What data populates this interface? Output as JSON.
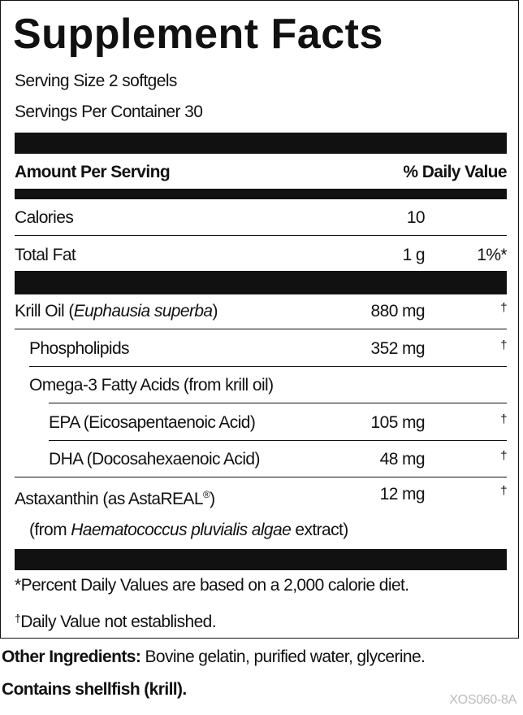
{
  "title": "Supplement Facts",
  "serving_size": "Serving Size 2 softgels",
  "servings_per_container": "Servings Per Container 30",
  "header": {
    "amount": "Amount Per Serving",
    "daily_value": "% Daily Value"
  },
  "rows": [
    {
      "name": [
        "Calories"
      ],
      "amount": "10"
    },
    {
      "name": [
        "Total Fat"
      ],
      "amount": "1 g",
      "dv": "1%*"
    },
    {
      "name": [
        "Krill Oil (",
        "Euphausia superba",
        ")"
      ],
      "amount": "880 mg",
      "dv": "†"
    },
    {
      "name": [
        "Phospholipids"
      ],
      "amount": "352 mg",
      "dv": "†"
    },
    {
      "name": [
        "Omega-3 Fatty Acids (from krill oil)"
      ]
    },
    {
      "name": [
        "EPA (Eicosapentaenoic Acid)"
      ],
      "amount": "105 mg",
      "dv": "†"
    },
    {
      "name": [
        "DHA (Docosahexaenoic Acid)"
      ],
      "amount": "48 mg",
      "dv": "†"
    },
    {
      "name": [
        "Astaxanthin (as AstaREAL",
        "®",
        ")"
      ],
      "amount": "12 mg",
      "dv": "†"
    },
    {
      "name": [
        "(from ",
        "Haematococcus pluvialis algae",
        " extract)"
      ]
    }
  ],
  "footnotes": [
    "*Percent Daily Values are based on a 2,000 calorie diet.",
    [
      "†",
      "Daily Value not established."
    ]
  ],
  "other_ingredients": {
    "label": "Other Ingredients:",
    "text": " Bovine gelatin, purified water, glycerine."
  },
  "allergen": "Contains shellfish (krill).",
  "code": "XOS060-8A"
}
